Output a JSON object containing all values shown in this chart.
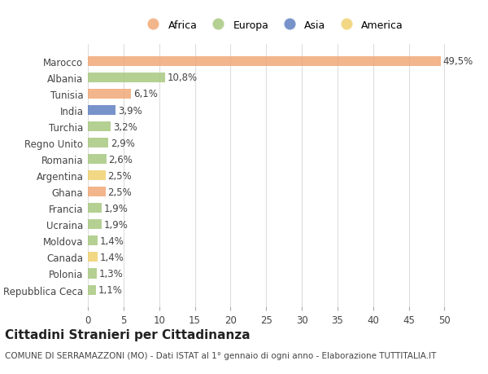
{
  "countries": [
    "Marocco",
    "Albania",
    "Tunisia",
    "India",
    "Turchia",
    "Regno Unito",
    "Romania",
    "Argentina",
    "Ghana",
    "Francia",
    "Ucraina",
    "Moldova",
    "Canada",
    "Polonia",
    "Repubblica Ceca"
  ],
  "values": [
    49.5,
    10.8,
    6.1,
    3.9,
    3.2,
    2.9,
    2.6,
    2.5,
    2.5,
    1.9,
    1.9,
    1.4,
    1.4,
    1.3,
    1.1
  ],
  "labels": [
    "49,5%",
    "10,8%",
    "6,1%",
    "3,9%",
    "3,2%",
    "2,9%",
    "2,6%",
    "2,5%",
    "2,5%",
    "1,9%",
    "1,9%",
    "1,4%",
    "1,4%",
    "1,3%",
    "1,1%"
  ],
  "continents": [
    "Africa",
    "Europa",
    "Africa",
    "Asia",
    "Europa",
    "Europa",
    "Europa",
    "America",
    "Africa",
    "Europa",
    "Europa",
    "Europa",
    "America",
    "Europa",
    "Europa"
  ],
  "colors": {
    "Africa": "#F0A878",
    "Europa": "#A8C880",
    "Asia": "#6080C0",
    "America": "#F0D070"
  },
  "legend_order": [
    "Africa",
    "Europa",
    "Asia",
    "America"
  ],
  "xlim": [
    0,
    52
  ],
  "xticks": [
    0,
    5,
    10,
    15,
    20,
    25,
    30,
    35,
    40,
    45,
    50
  ],
  "title": "Cittadini Stranieri per Cittadinanza",
  "subtitle": "COMUNE DI SERRAMAZZONI (MO) - Dati ISTAT al 1° gennaio di ogni anno - Elaborazione TUTTITALIA.IT",
  "bg_color": "#FFFFFF",
  "plot_bg_color": "#FFFFFF",
  "grid_color": "#DDDDDD",
  "label_fontsize": 8.5,
  "tick_fontsize": 8.5,
  "bar_height": 0.6
}
